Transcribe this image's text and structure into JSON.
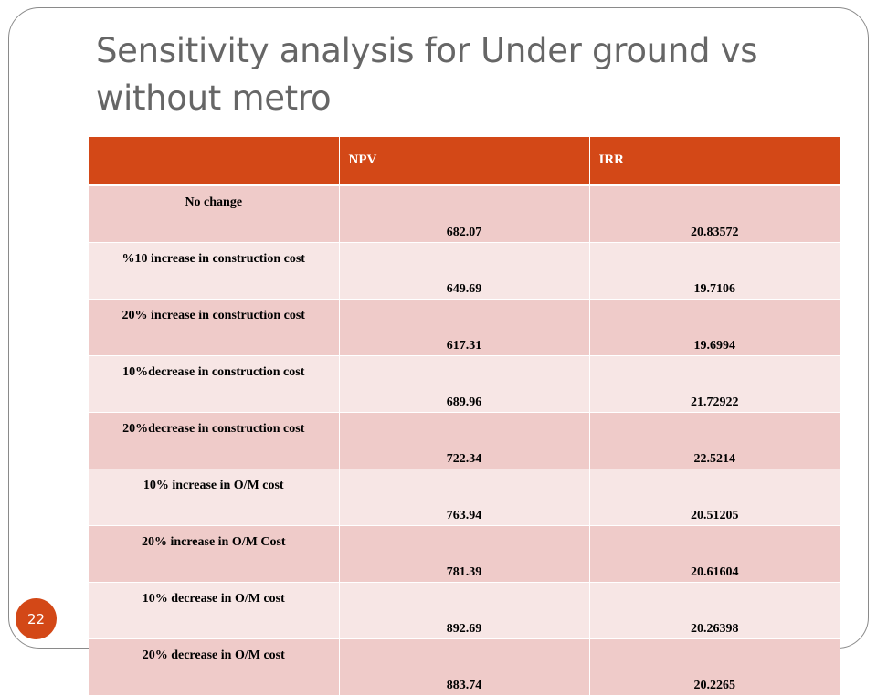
{
  "slide": {
    "title": "Sensitivity analysis for Under ground vs without metro",
    "page_number": "22"
  },
  "table": {
    "headers": [
      "",
      "NPV",
      "IRR"
    ],
    "rows": [
      {
        "label": "No change",
        "npv": "682.07",
        "irr": "20.83572"
      },
      {
        "label": "%10 increase in construction cost",
        "npv": "649.69",
        "irr": "19.7106"
      },
      {
        "label": "20% increase in construction cost",
        "npv": "617.31",
        "irr": "19.6994"
      },
      {
        "label": "10%decrease in construction cost",
        "npv": "689.96",
        "irr": "21.72922"
      },
      {
        "label": "20%decrease in construction cost",
        "npv": "722.34",
        "irr": "22.5214"
      },
      {
        "label": "10% increase in O/M cost",
        "npv": "763.94",
        "irr": "20.51205"
      },
      {
        "label": "20% increase in O/M Cost",
        "npv": "781.39",
        "irr": "20.61604"
      },
      {
        "label": "10% decrease in O/M cost",
        "npv": "892.69",
        "irr": "20.26398"
      },
      {
        "label": "20% decrease in O/M cost",
        "npv": "883.74",
        "irr": "20.2265"
      }
    ]
  },
  "colors": {
    "accent": "#d34817",
    "row_dark": "#efcbc9",
    "row_light": "#f7e6e5",
    "title_text": "#666666"
  }
}
